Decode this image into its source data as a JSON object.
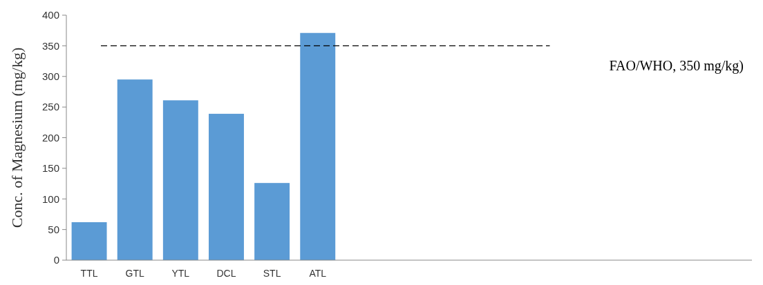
{
  "chart_data": {
    "type": "bar",
    "ylabel": "Conc. of Magnesium  (mg/kg)",
    "categories": [
      "TTL",
      "GTL",
      "YTL",
      "DCL",
      "STL",
      "ATL",
      null,
      null,
      null,
      null,
      null,
      null,
      null,
      null,
      null
    ],
    "values": [
      62,
      295,
      261,
      239,
      126,
      371,
      null,
      null,
      null,
      null,
      null,
      null,
      null,
      null,
      null
    ],
    "color": "#5b9bd5",
    "ylim": [
      0,
      400
    ],
    "yticks": [
      0,
      50,
      100,
      150,
      200,
      250,
      300,
      350,
      400
    ],
    "grid": false,
    "ref_lines": [
      {
        "axis": "y",
        "value": 350,
        "label": "FAO/WHO, 350 mg/kg)",
        "color": "#000000",
        "line_style": "dashed"
      }
    ]
  }
}
